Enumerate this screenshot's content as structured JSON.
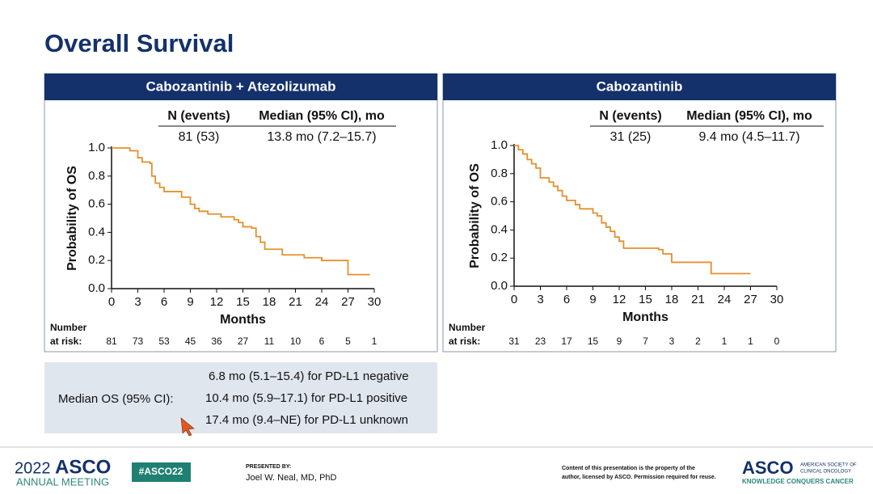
{
  "title": "Overall Survival",
  "chart_data": [
    {
      "type": "step",
      "title": "Cabozantinib + Atezolizumab",
      "color": "#e3902e",
      "table": {
        "headers": [
          "N (events)",
          "Median (95% CI), mo"
        ],
        "row": [
          "81 (53)",
          "13.8 mo (7.2–15.7)"
        ]
      },
      "x": [
        0,
        2.1,
        3,
        3.5,
        4.4,
        4.6,
        5,
        5.5,
        6,
        8,
        9,
        9.5,
        10,
        11,
        12.5,
        14,
        14.5,
        15,
        16,
        16.5,
        17,
        17.5,
        19.5,
        22,
        24,
        27,
        29.5
      ],
      "values": [
        1.0,
        0.98,
        0.93,
        0.9,
        0.89,
        0.8,
        0.75,
        0.72,
        0.69,
        0.65,
        0.6,
        0.57,
        0.55,
        0.53,
        0.51,
        0.49,
        0.47,
        0.44,
        0.43,
        0.37,
        0.33,
        0.28,
        0.24,
        0.22,
        0.2,
        0.1,
        0.1
      ],
      "xlim": [
        0,
        30
      ],
      "ylim": [
        0,
        1
      ],
      "xticks": [
        0,
        3,
        6,
        9,
        12,
        15,
        18,
        21,
        24,
        27,
        30
      ],
      "yticks": [
        {
          "value": 0,
          "label": "0.0"
        },
        0.2,
        0.4,
        0.6,
        0.8,
        {
          "value": 1,
          "label": "1.0"
        }
      ],
      "xlabel": "Months",
      "ylabel": "Probability of OS",
      "risk_label": [
        "Number",
        "at risk:"
      ],
      "at_risk": [
        81,
        73,
        53,
        45,
        36,
        27,
        11,
        10,
        6,
        5,
        1
      ]
    },
    {
      "type": "step",
      "title": "Cabozantinib",
      "color": "#e3902e",
      "table": {
        "headers": [
          "N (events)",
          "Median (95% CI), mo"
        ],
        "row": [
          "31 (25)",
          "9.4 mo (4.5–11.7)"
        ]
      },
      "x": [
        0,
        0.5,
        1,
        1.5,
        2,
        2.5,
        3,
        4,
        4.5,
        5,
        5.5,
        6,
        7,
        7.5,
        9,
        9.5,
        10,
        10.5,
        11,
        11.5,
        12,
        12.5,
        16.5,
        17,
        18,
        22.5,
        27
      ],
      "values": [
        1.0,
        0.97,
        0.94,
        0.9,
        0.87,
        0.84,
        0.77,
        0.74,
        0.71,
        0.68,
        0.64,
        0.61,
        0.58,
        0.55,
        0.52,
        0.5,
        0.45,
        0.42,
        0.39,
        0.35,
        0.32,
        0.27,
        0.26,
        0.23,
        0.17,
        0.09,
        0.09
      ],
      "xlim": [
        0,
        30
      ],
      "ylim": [
        0,
        1
      ],
      "xticks": [
        0,
        3,
        6,
        9,
        12,
        15,
        18,
        21,
        24,
        27,
        30
      ],
      "yticks": [
        {
          "value": 0,
          "label": "0.0"
        },
        0.2,
        0.4,
        0.6,
        0.8,
        {
          "value": 1,
          "label": "1.0"
        }
      ],
      "xlabel": "Months",
      "ylabel": "Probability of OS",
      "risk_label": [
        "Number",
        "at risk:"
      ],
      "at_risk": [
        31,
        23,
        17,
        15,
        9,
        7,
        3,
        2,
        1,
        1,
        0
      ]
    }
  ],
  "median_os": {
    "label": "Median OS (95% CI):",
    "lines": [
      "6.8 mo (5.1–15.4) for PD-L1 negative",
      "10.4 mo (5.9–17.1) for PD-L1 positive",
      "17.4 mo (9.4–NE) for PD-L1 unknown"
    ]
  },
  "footer": {
    "year": "2022",
    "asco": "ASCO",
    "meeting": "ANNUAL MEETING",
    "hashtag": "#ASCO22",
    "presented_by": "PRESENTED BY:",
    "presenter": "Joel W. Neal, MD, PhD",
    "notice": [
      "Content of this presentation is the property of the",
      "author, licensed by ASCO. Permission required for reuse."
    ],
    "society": [
      "AMERICAN SOCIETY OF",
      "CLINICAL ONCOLOGY"
    ],
    "tagline": "KNOWLEDGE CONQUERS CANCER"
  }
}
